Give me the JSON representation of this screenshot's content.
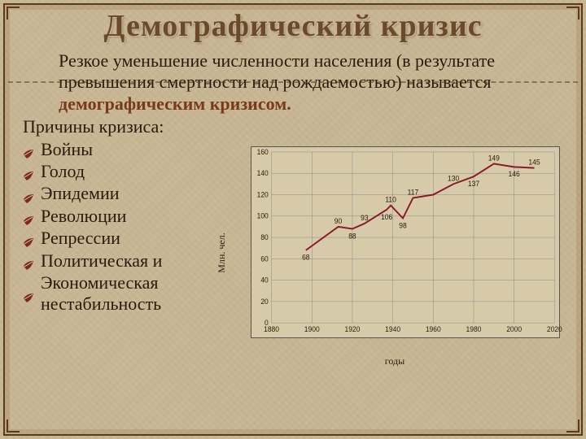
{
  "title": "Демографический кризис",
  "intro_plain": "Резкое уменьшение численности населения (в результате превышения смертности над рождаемостью) называется ",
  "intro_emph": "демографическим кризисом.",
  "causes_label": "Причины кризиса:",
  "bullet_icon": "leaf-icon",
  "causes": [
    "Войны",
    "Голод",
    "Эпидемии",
    "Революции",
    "Репрессии",
    "Политическая и",
    "Экономическая нестабильность"
  ],
  "chart": {
    "type": "line",
    "ylabel": "Млн. чел.",
    "xlabel": "годы",
    "xlim": [
      1880,
      2020
    ],
    "ylim": [
      0,
      160
    ],
    "ytick_step": 20,
    "xtick_step": 20,
    "background_color": "#d7caa9",
    "grid_color": "#888888",
    "line_color": "#8a1a2a",
    "line_width": 2,
    "tick_fontsize": 9,
    "label_fontsize": 12,
    "x": [
      1897,
      1913,
      1920,
      1926,
      1937,
      1939,
      1945,
      1950,
      1960,
      1970,
      1980,
      1990,
      2000,
      2010
    ],
    "y": [
      68,
      90,
      88,
      93,
      106,
      110,
      98,
      117,
      120,
      130,
      137,
      149,
      146,
      145
    ],
    "show_dl": [
      1,
      1,
      1,
      1,
      1,
      1,
      1,
      1,
      0,
      1,
      1,
      1,
      1,
      1
    ]
  },
  "colors": {
    "page_bg": "#c9b896",
    "title_color": "#6b4a2a",
    "text_color": "#2a1a0a",
    "emphasis_color": "#7a3a1a",
    "frame_color": "#5a3a1a",
    "bullet_color": "#7a2a1a"
  }
}
